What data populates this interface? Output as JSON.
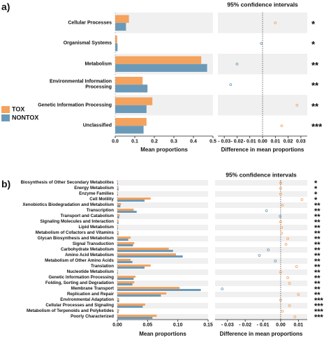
{
  "chart_data": [
    {
      "type": "bar",
      "panel_label": "a)",
      "categories": [
        "Cellular Processes",
        "Organismal Systems",
        "Metabolism",
        "Environmental Information Processing",
        "Genetic Information Processing",
        "Unclassified"
      ],
      "series": [
        {
          "name": "TOX",
          "color": "#f5a25d",
          "values": [
            0.07,
            0.01,
            0.44,
            0.14,
            0.19,
            0.16
          ]
        },
        {
          "name": "NONTOX",
          "color": "#6b9ab9",
          "values": [
            0.055,
            0.012,
            0.47,
            0.165,
            0.16,
            0.145
          ]
        }
      ],
      "xlim": [
        0,
        0.5
      ],
      "xticks": [
        {
          "value": 0,
          "label": "0.0"
        },
        0.1,
        0.2,
        0.3,
        0.4,
        0.5
      ],
      "xlabel": "Mean proportions",
      "legend": "left"
    },
    {
      "type": "dot",
      "title": "95% confidence intervals",
      "values": [
        0.01,
        -0.001,
        -0.02,
        -0.025,
        0.027,
        0.015
      ],
      "positive_color": "#f5a25d",
      "negative_color": "#6b9ab9",
      "xlim": [
        -0.035,
        0.035
      ],
      "xticks": [
        {
          "value": -0.03,
          "label": "- 0.03"
        },
        {
          "value": -0.02,
          "label": "- 0.02"
        },
        {
          "value": -0.01,
          "label": "- 0.01"
        },
        {
          "value": 0,
          "label": "0.00"
        },
        0.01,
        0.02,
        0.03
      ],
      "xlabel": "Difference in mean proportions",
      "annotations": [
        "*",
        "*",
        "**",
        "**",
        "**",
        "***"
      ]
    },
    {
      "type": "bar",
      "panel_label": "b)",
      "categories": [
        "Biosynthesis of Other Secondary Metabolites",
        "Energy Metabolism",
        "Enzyme Families",
        "Cell Motility",
        "Xenobiotics Biodegradation and Metabolism",
        "Transcription",
        "Transport and Catabolism",
        "Signaling Molecules and Interaction",
        "Lipid Metabolism",
        "Metabolism of Cofactors and Vitamins",
        "Glycan Biosynthesis and Metabolism",
        "Signal Transduction",
        "Carbohydrate Metabolism",
        "Amino Acid Metabolism",
        "Metabolism of Other Amino Acids",
        "Translation",
        "Nucleotide Metabolism",
        "Genetic Information Processing",
        "Folding, Sorting and Degradation",
        "Membrane Transport",
        "Replication and Repair",
        "Environmental Adaptation",
        "Cellular Processes and Signaling",
        "Metabolism of Terpenoids and Polyketides",
        "Poorly Characterized"
      ],
      "series": [
        {
          "name": "TOX",
          "color": "#f5a25d",
          "values": [
            0.001,
            0.002,
            0.001,
            0.055,
            0.006,
            0.027,
            0.004,
            0.002,
            0.001,
            0.002,
            0.022,
            0.028,
            0.085,
            0.097,
            0.022,
            0.055,
            0.001,
            0.03,
            0.028,
            0.103,
            0.081,
            0.003,
            0.046,
            0.003,
            0.065
          ]
        },
        {
          "name": "NONTOX",
          "color": "#6b9ab9",
          "values": [
            0.001,
            0.002,
            0.001,
            0.045,
            0.005,
            0.032,
            0.003,
            0.002,
            0.001,
            0.002,
            0.018,
            0.026,
            0.092,
            0.108,
            0.025,
            0.045,
            0.001,
            0.027,
            0.025,
            0.138,
            0.072,
            0.003,
            0.042,
            0.002,
            0.058
          ]
        }
      ],
      "xlim": [
        0,
        0.15
      ],
      "xticks": [
        {
          "value": 0,
          "label": "0.00"
        },
        0.05,
        {
          "value": 0.1,
          "label": "0.10"
        },
        0.15
      ],
      "xlabel": "Mean proportions"
    },
    {
      "type": "dot",
      "title": "95% confidence intervals",
      "values": [
        0,
        0,
        0,
        0.012,
        0.001,
        -0.008,
        -0.0003,
        0,
        0.0005,
        0.0005,
        0.004,
        0.003,
        -0.007,
        -0.012,
        -0.003,
        0.009,
        0,
        0.004,
        0.005,
        -0.033,
        0.01,
        0,
        0.005,
        0.001,
        0.008
      ],
      "positive_color": "#f5a25d",
      "negative_color": "#6b9ab9",
      "xlim": [
        -0.037,
        0.015
      ],
      "xticks": [
        {
          "value": -0.03,
          "label": "- 0.03"
        },
        {
          "value": -0.02,
          "label": "- 0.02"
        },
        {
          "value": -0.01,
          "label": "- 0.01"
        },
        {
          "value": 0,
          "label": "0.00"
        },
        0.01
      ],
      "xlabel": "Difference in mean proportions",
      "annotations": [
        "*",
        "*",
        "*",
        "*",
        "**",
        "**",
        "**",
        "**",
        "**",
        "**",
        "**",
        "**",
        "**",
        "**",
        "**",
        "**",
        "**",
        "**",
        "**",
        "**",
        "**",
        "***",
        "***",
        "***",
        "***"
      ]
    }
  ]
}
